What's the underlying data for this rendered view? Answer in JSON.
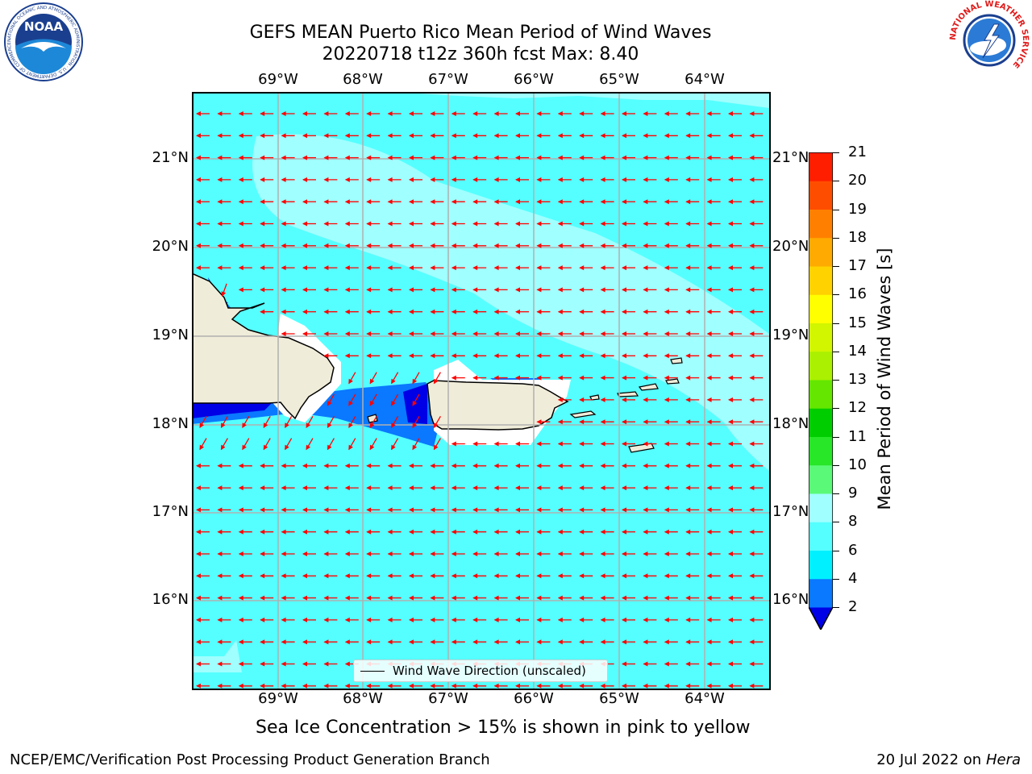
{
  "title_line1": "GEFS MEAN Puerto Rico Mean Period of Wind Waves",
  "title_line2": "20220718 t12z 360h fcst   Max: 8.40",
  "lon_labels": [
    "69°W",
    "68°W",
    "67°W",
    "66°W",
    "65°W",
    "64°W"
  ],
  "lat_labels": [
    "21°N",
    "20°N",
    "19°N",
    "18°N",
    "17°N",
    "16°N"
  ],
  "legend_text": "Wind Wave Direction (unscaled)",
  "colorbar": {
    "title": "Mean Period of Wind Waves [s]",
    "ticks": [
      "2",
      "4",
      "6",
      "8",
      "9",
      "10",
      "11",
      "12",
      "13",
      "14",
      "15",
      "16",
      "17",
      "18",
      "19",
      "20",
      "21"
    ],
    "colors": [
      "#0000e6",
      "#0a78ff",
      "#00f0ff",
      "#55ffff",
      "#a0ffff",
      "#5afa78",
      "#28e628",
      "#00cd00",
      "#64e600",
      "#aaf000",
      "#d2f500",
      "#ffff00",
      "#ffd200",
      "#ffaa00",
      "#ff8000",
      "#ff4d00",
      "#ff1e00",
      "#ff0000"
    ]
  },
  "map_colors": {
    "sea_6_8": "#55ffff",
    "sea_8_9": "#a0ffff",
    "sea_4_6": "#0a78ff",
    "sea_2_4": "#0000e6",
    "land": "#efecd9",
    "arrow": "#ff0000",
    "grid": "#b0b0b0"
  },
  "footnote": "Sea Ice Concentration > 15% is shown in pink to yellow",
  "credit": "NCEP/EMC/Verification Post Processing Product Generation Branch",
  "date_text": "20 Jul 2022 on",
  "date_host": "Hera",
  "logos": {
    "noaa": "NOAA",
    "noaa_ring": "NATIONAL OCEANIC AND ATMOSPHERIC ADMINISTRATION · U.S. DEPARTMENT OF COMMERCE",
    "nws_ring": "NATIONAL WEATHER SERVICE"
  }
}
